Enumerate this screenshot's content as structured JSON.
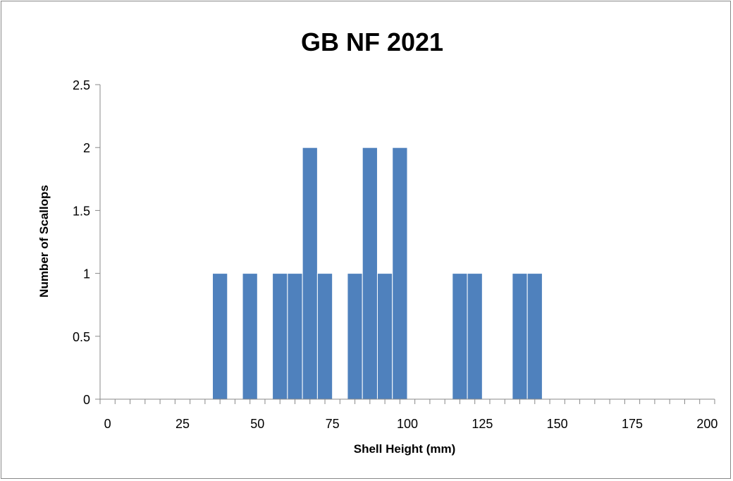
{
  "chart_data": {
    "type": "bar",
    "title": "GB NF 2021",
    "xlabel": "Shell Height (mm)",
    "ylabel": "Number of Scallops",
    "xlim": [
      0,
      205
    ],
    "ylim": [
      0,
      2.5
    ],
    "bin_width": 5,
    "x_ticks": [
      "0",
      "25",
      "50",
      "75",
      "100",
      "125",
      "150",
      "175",
      "200"
    ],
    "y_ticks": [
      "0",
      "0.5",
      "1",
      "1.5",
      "2",
      "2.5"
    ],
    "x": [
      40,
      50,
      60,
      65,
      70,
      75,
      85,
      90,
      95,
      100,
      120,
      125,
      140,
      145
    ],
    "values": [
      1,
      1,
      1,
      1,
      2,
      1,
      1,
      2,
      1,
      2,
      1,
      1,
      1,
      1
    ],
    "bar_color": "#4f81bd",
    "grid": false,
    "legend": "none"
  }
}
